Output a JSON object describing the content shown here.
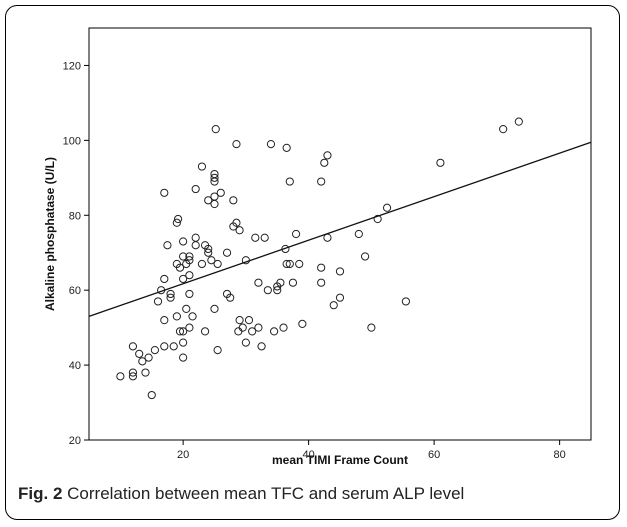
{
  "caption": {
    "label": "Fig. 2",
    "text": "Correlation between mean TFC and serum ALP level"
  },
  "chart_data": {
    "type": "scatter",
    "xlabel": "mean TIMI Frame Count",
    "ylabel": "Alkaline phosphatase (U/L)",
    "xlim": [
      5,
      85
    ],
    "ylim": [
      20,
      130
    ],
    "xticks": [
      20,
      40,
      60,
      80
    ],
    "yticks": [
      20,
      40,
      60,
      80,
      100,
      120
    ],
    "grid": false,
    "points": [
      [
        10,
        37
      ],
      [
        12,
        38
      ],
      [
        12,
        37
      ],
      [
        12,
        45
      ],
      [
        13,
        43
      ],
      [
        13.5,
        41
      ],
      [
        14,
        38
      ],
      [
        14.5,
        42
      ],
      [
        15,
        32
      ],
      [
        15.5,
        44
      ],
      [
        16,
        57
      ],
      [
        16.5,
        60
      ],
      [
        17,
        52
      ],
      [
        17,
        63
      ],
      [
        17,
        86
      ],
      [
        17,
        45
      ],
      [
        17.5,
        72
      ],
      [
        18,
        58
      ],
      [
        18,
        59
      ],
      [
        18.5,
        45
      ],
      [
        19,
        53
      ],
      [
        19,
        67
      ],
      [
        19,
        78
      ],
      [
        19.2,
        79
      ],
      [
        19.5,
        66
      ],
      [
        19.5,
        49
      ],
      [
        20,
        49
      ],
      [
        20,
        42
      ],
      [
        20,
        46
      ],
      [
        20,
        63
      ],
      [
        20,
        69
      ],
      [
        20,
        73
      ],
      [
        20.5,
        67
      ],
      [
        20.5,
        55
      ],
      [
        21,
        59
      ],
      [
        21,
        64
      ],
      [
        21,
        68
      ],
      [
        21,
        69
      ],
      [
        21,
        50
      ],
      [
        21.5,
        53
      ],
      [
        22,
        72
      ],
      [
        22,
        74
      ],
      [
        22,
        87
      ],
      [
        23,
        93
      ],
      [
        23,
        67
      ],
      [
        23.5,
        49
      ],
      [
        23.5,
        72
      ],
      [
        24,
        71
      ],
      [
        24,
        84
      ],
      [
        24,
        70
      ],
      [
        24.5,
        68
      ],
      [
        25,
        83
      ],
      [
        25,
        85
      ],
      [
        25,
        89
      ],
      [
        25,
        90
      ],
      [
        25,
        91
      ],
      [
        25,
        55
      ],
      [
        25.2,
        103
      ],
      [
        25.5,
        44
      ],
      [
        25.5,
        67
      ],
      [
        26,
        86
      ],
      [
        27,
        59
      ],
      [
        27,
        70
      ],
      [
        27.5,
        58
      ],
      [
        28,
        84
      ],
      [
        28,
        77
      ],
      [
        28.5,
        78
      ],
      [
        28.5,
        99
      ],
      [
        28.8,
        49
      ],
      [
        29,
        76
      ],
      [
        29,
        52
      ],
      [
        29.5,
        50
      ],
      [
        30,
        46
      ],
      [
        30,
        68
      ],
      [
        30.5,
        52
      ],
      [
        31,
        49
      ],
      [
        31.5,
        74
      ],
      [
        32,
        62
      ],
      [
        32,
        50
      ],
      [
        32.5,
        45
      ],
      [
        33,
        74
      ],
      [
        33.5,
        60
      ],
      [
        34,
        99
      ],
      [
        34.5,
        49
      ],
      [
        35,
        60
      ],
      [
        35,
        61
      ],
      [
        35.5,
        62
      ],
      [
        36,
        50
      ],
      [
        36.3,
        71
      ],
      [
        36.5,
        98
      ],
      [
        36.5,
        67
      ],
      [
        37,
        89
      ],
      [
        37,
        67
      ],
      [
        37.5,
        62
      ],
      [
        38,
        75
      ],
      [
        39,
        51
      ],
      [
        38.5,
        67
      ],
      [
        42,
        89
      ],
      [
        42,
        66
      ],
      [
        42,
        62
      ],
      [
        42.5,
        94
      ],
      [
        43,
        96
      ],
      [
        43,
        74
      ],
      [
        44,
        56
      ],
      [
        45,
        58
      ],
      [
        45,
        65
      ],
      [
        48,
        75
      ],
      [
        49,
        69
      ],
      [
        50,
        50
      ],
      [
        51,
        79
      ],
      [
        52.5,
        82
      ],
      [
        55.5,
        57
      ],
      [
        61,
        94
      ],
      [
        71,
        103
      ],
      [
        73.5,
        105
      ]
    ],
    "fit_line": {
      "x": [
        5,
        85
      ],
      "y": [
        53,
        99.5
      ]
    }
  }
}
